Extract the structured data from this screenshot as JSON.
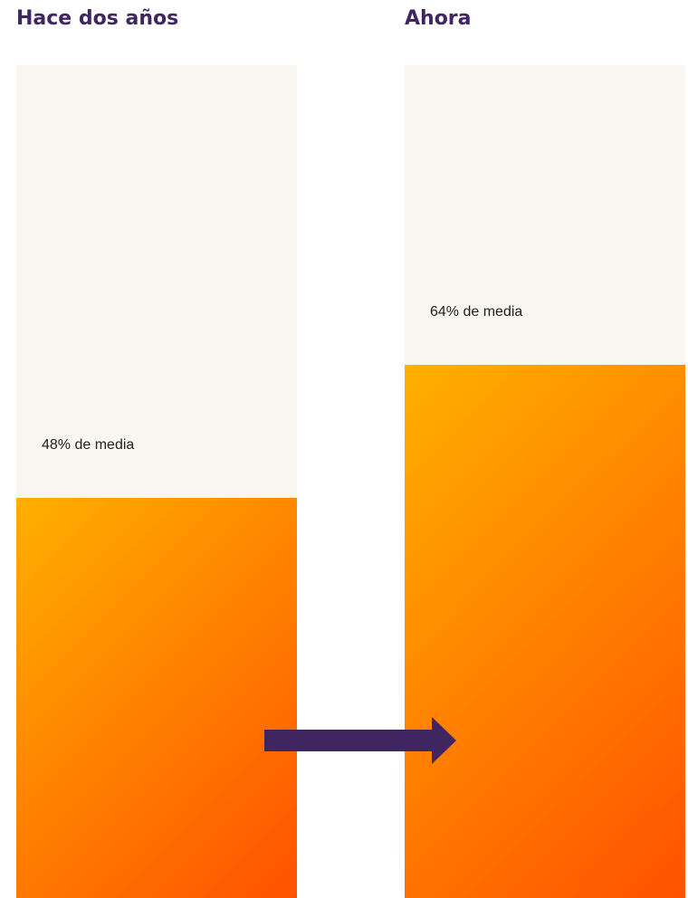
{
  "chart_data": {
    "type": "bar",
    "categories": [
      "Hace dos años",
      "Ahora"
    ],
    "values": [
      48,
      64
    ],
    "labels": [
      "48% de media",
      "64% de media"
    ],
    "unit": "%",
    "ylim": [
      0,
      100
    ],
    "colors": {
      "title": "#3f2660",
      "track": "#f9f6ef",
      "fill_start": "#ffb000",
      "fill_end": "#ff5200",
      "arrow": "#3f2660"
    },
    "annotation": "arrow from left bar to right bar"
  }
}
